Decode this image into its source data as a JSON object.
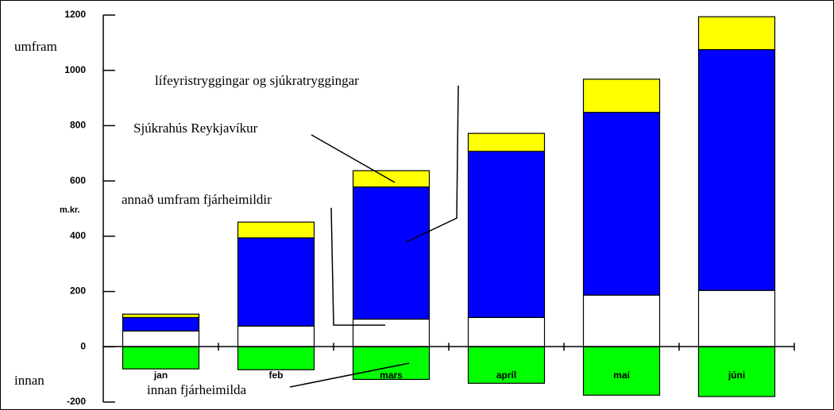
{
  "chart_data": {
    "type": "stacked_bar",
    "y_axis_label": "m.kr.",
    "upper_label": "umfram",
    "lower_label": "innan",
    "categories": [
      "jan",
      "feb",
      "mars",
      "apríl",
      "maí",
      "júni"
    ],
    "series": [
      {
        "name": "innan fjárheimilda",
        "color": "#00ff00",
        "values": [
          -80,
          -83,
          -118,
          -132,
          -175,
          -180
        ]
      },
      {
        "name": "annað umfram fjárheimildir",
        "color": "#ffffff",
        "values": [
          57,
          75,
          100,
          106,
          187,
          204
        ]
      },
      {
        "name": "lífeyristryggingar og sjúkratryggingar",
        "color": "#0000ff",
        "values": [
          49,
          319,
          478,
          601,
          661,
          871
        ]
      },
      {
        "name": "Sjúkrahús Reykjavíkur",
        "color": "#ffff00",
        "values": [
          12,
          57,
          59,
          65,
          120,
          119
        ]
      }
    ],
    "ylim": [
      -200,
      1200
    ],
    "yticks": [
      -200,
      0,
      200,
      400,
      600,
      800,
      1000,
      1200
    ]
  }
}
